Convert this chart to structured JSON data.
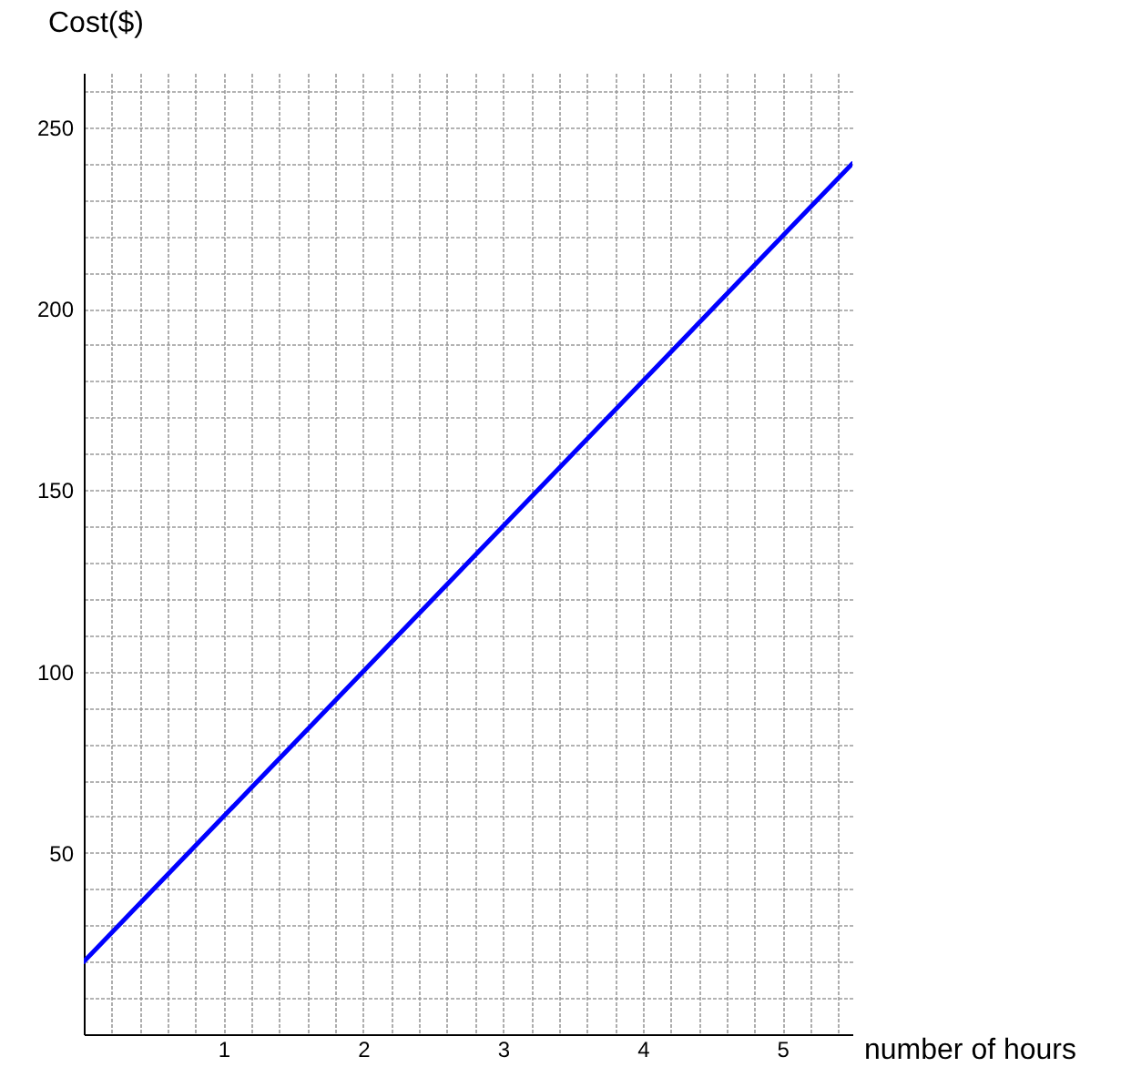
{
  "chart_data": {
    "type": "line",
    "xlabel": "number of hours",
    "ylabel": "Cost($)",
    "x": [
      0,
      5.5
    ],
    "series": [
      {
        "color": "#0000ff",
        "values": [
          20,
          240
        ]
      }
    ],
    "xlim": [
      0,
      5.5
    ],
    "ylim": [
      0,
      265
    ],
    "xticks": [
      {
        "value": 0.2,
        "label": null
      },
      {
        "value": 0.4,
        "label": null
      },
      {
        "value": 0.6,
        "label": null
      },
      {
        "value": 0.8,
        "label": null
      },
      1,
      {
        "value": 1.2,
        "label": null
      },
      {
        "value": 1.4,
        "label": null
      },
      {
        "value": 1.6,
        "label": null
      },
      {
        "value": 1.8,
        "label": null
      },
      2,
      {
        "value": 2.2,
        "label": null
      },
      {
        "value": 2.4,
        "label": null
      },
      {
        "value": 2.6,
        "label": null
      },
      {
        "value": 2.8,
        "label": null
      },
      3,
      {
        "value": 3.2,
        "label": null
      },
      {
        "value": 3.4,
        "label": null
      },
      {
        "value": 3.6,
        "label": null
      },
      {
        "value": 3.8,
        "label": null
      },
      4,
      {
        "value": 4.2,
        "label": null
      },
      {
        "value": 4.4,
        "label": null
      },
      {
        "value": 4.6,
        "label": null
      },
      {
        "value": 4.8,
        "label": null
      },
      5,
      {
        "value": 5.2,
        "label": null
      },
      {
        "value": 5.4,
        "label": null
      }
    ],
    "yticks": [
      {
        "value": 10,
        "label": null
      },
      {
        "value": 20,
        "label": null
      },
      {
        "value": 30,
        "label": null
      },
      {
        "value": 40,
        "label": null
      },
      50,
      {
        "value": 60,
        "label": null
      },
      {
        "value": 70,
        "label": null
      },
      {
        "value": 80,
        "label": null
      },
      {
        "value": 90,
        "label": null
      },
      100,
      {
        "value": 110,
        "label": null
      },
      {
        "value": 120,
        "label": null
      },
      {
        "value": 130,
        "label": null
      },
      {
        "value": 140,
        "label": null
      },
      150,
      {
        "value": 160,
        "label": null
      },
      {
        "value": 170,
        "label": null
      },
      {
        "value": 180,
        "label": null
      },
      {
        "value": 190,
        "label": null
      },
      200,
      {
        "value": 210,
        "label": null
      },
      {
        "value": 220,
        "label": null
      },
      {
        "value": 230,
        "label": null
      },
      {
        "value": 240,
        "label": null
      },
      250,
      {
        "value": 260,
        "label": null
      }
    ],
    "grid": true,
    "marker": "none",
    "line_style": "solid"
  }
}
